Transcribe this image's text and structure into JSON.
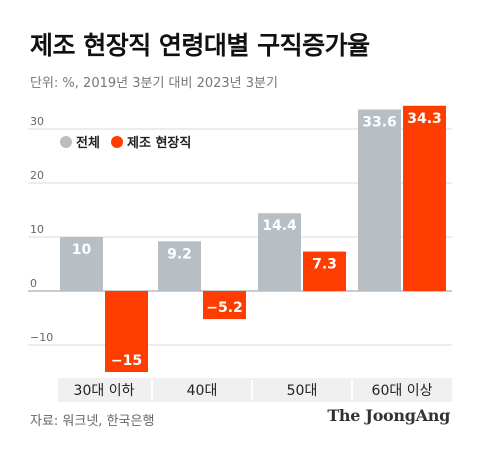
{
  "title": "제조 현장직 연령대별 구직증가율",
  "subtitle": "단위: %, 2019년 3분기 대비 2023년 3분기",
  "source": "자료: 워크넷, 한국은행",
  "brand": "The JoongAng",
  "colors": {
    "total": "#b7bfc5",
    "manufacturing": "#ff3d00",
    "grid": "#d9d9d9",
    "axis_text": "#666666",
    "category_bg": "#f0f0f0"
  },
  "chart_data": {
    "type": "bar",
    "categories": [
      "30대 이하",
      "40대",
      "50대",
      "60대 이상"
    ],
    "series": [
      {
        "name": "전체",
        "values": [
          10,
          9.2,
          14.4,
          33.6
        ],
        "labels": [
          "10",
          "9.2",
          "14.4",
          "33.6"
        ]
      },
      {
        "name": "제조 현장직",
        "values": [
          -15,
          -5.2,
          7.3,
          34.3
        ],
        "labels": [
          "−15",
          "−5.2",
          "7.3",
          "34.3"
        ]
      }
    ],
    "yticks": [
      30,
      20,
      10,
      0,
      -10
    ],
    "ytick_labels": [
      "30",
      "20",
      "10",
      "0",
      "−10"
    ],
    "ylim": [
      -15,
      34.3
    ],
    "grid": true,
    "legend": "top-left"
  }
}
